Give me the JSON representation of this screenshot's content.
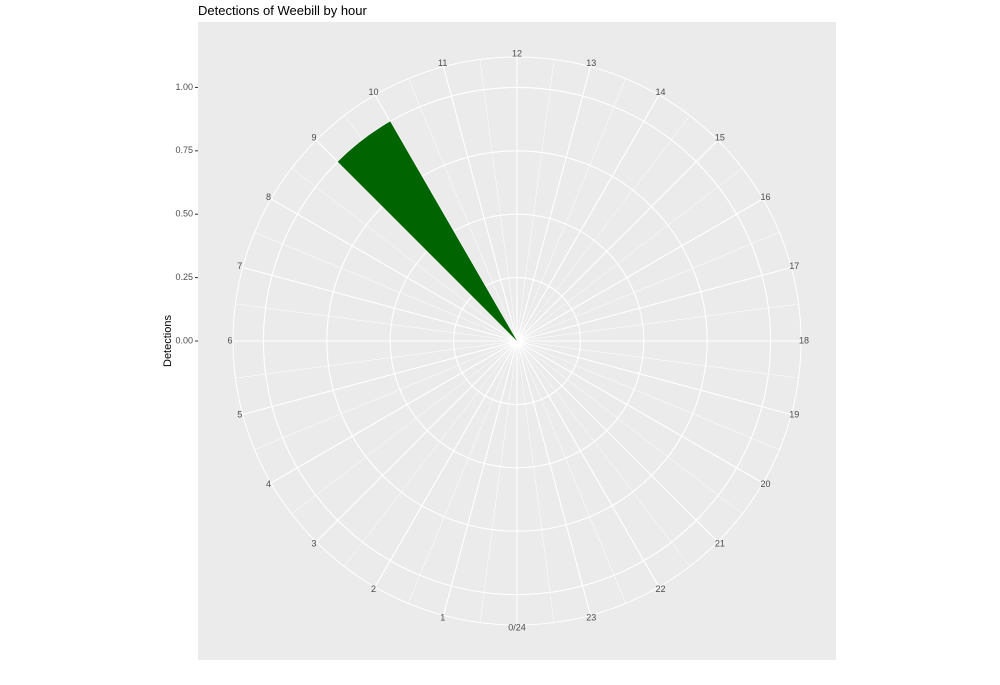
{
  "chart_data": {
    "type": "bar",
    "coord": "polar",
    "title": "Detections of Weebill by hour",
    "y_label": "Detections",
    "categories": [
      "0/24",
      "1",
      "2",
      "3",
      "4",
      "5",
      "6",
      "7",
      "8",
      "9",
      "10",
      "11",
      "12",
      "13",
      "14",
      "15",
      "16",
      "17",
      "18",
      "19",
      "20",
      "21",
      "22",
      "23"
    ],
    "values": [
      0,
      0,
      0,
      0,
      0,
      0,
      0,
      0,
      0,
      1,
      0,
      0,
      0,
      0,
      0,
      0,
      0,
      0,
      0,
      0,
      0,
      0,
      0,
      0
    ],
    "color": "#006400",
    "ylim": [
      0,
      1.12
    ],
    "yticks": [
      {
        "value": 0,
        "label": "0.00"
      },
      {
        "value": 0.25,
        "label": "0.25"
      },
      {
        "value": 0.5,
        "label": "0.50"
      },
      {
        "value": 0.75,
        "label": "0.75"
      },
      {
        "value": 1,
        "label": "1.00"
      }
    ],
    "grid": true
  }
}
